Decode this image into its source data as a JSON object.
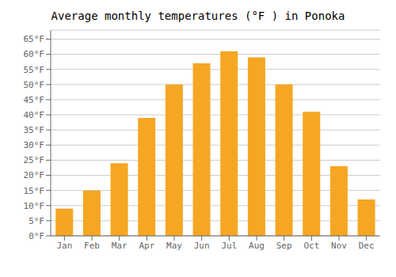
{
  "chart_data": {
    "type": "bar",
    "title": "Average monthly temperatures (°F ) in Ponoka",
    "categories": [
      "Jan",
      "Feb",
      "Mar",
      "Apr",
      "May",
      "Jun",
      "Jul",
      "Aug",
      "Sep",
      "Oct",
      "Nov",
      "Dec"
    ],
    "values": [
      9,
      15,
      24,
      39,
      50,
      57,
      61,
      59,
      50,
      41,
      23,
      12
    ],
    "color": "#F5A623",
    "ylim": [
      0,
      68
    ],
    "yticks": [
      {
        "value": 0,
        "label": "0°F"
      },
      {
        "value": 5,
        "label": "5°F"
      },
      {
        "value": 10,
        "label": "10°F"
      },
      {
        "value": 15,
        "label": "15°F"
      },
      {
        "value": 20,
        "label": "20°F"
      },
      {
        "value": 25,
        "label": "25°F"
      },
      {
        "value": 30,
        "label": "30°F"
      },
      {
        "value": 35,
        "label": "35°F"
      },
      {
        "value": 40,
        "label": "40°F"
      },
      {
        "value": 45,
        "label": "45°F"
      },
      {
        "value": 50,
        "label": "50°F"
      },
      {
        "value": 55,
        "label": "55°F"
      },
      {
        "value": 60,
        "label": "60°F"
      },
      {
        "value": 65,
        "label": "65°F"
      }
    ],
    "grid": true
  }
}
